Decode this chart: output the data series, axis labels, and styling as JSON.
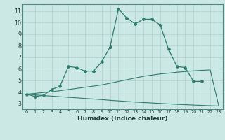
{
  "xlabel": "Humidex (Indice chaleur)",
  "x_values": [
    0,
    1,
    2,
    3,
    4,
    5,
    6,
    7,
    8,
    9,
    10,
    11,
    12,
    13,
    14,
    15,
    16,
    17,
    18,
    19,
    20,
    21,
    22,
    23
  ],
  "main_line": [
    3.8,
    3.6,
    3.7,
    4.2,
    4.5,
    6.2,
    6.1,
    5.8,
    5.8,
    6.6,
    7.9,
    11.2,
    10.4,
    9.9,
    10.3,
    10.3,
    9.8,
    7.7,
    6.2,
    6.1,
    4.9,
    4.9,
    null,
    null
  ],
  "upper_line": [
    3.8,
    3.87,
    3.94,
    4.01,
    4.1,
    4.2,
    4.3,
    4.4,
    4.5,
    4.6,
    4.75,
    4.9,
    5.05,
    5.2,
    5.35,
    5.45,
    5.55,
    5.62,
    5.7,
    5.76,
    5.82,
    5.87,
    5.9,
    2.85
  ],
  "lower_line": [
    3.8,
    3.74,
    3.68,
    3.63,
    3.58,
    3.53,
    3.48,
    3.43,
    3.38,
    3.33,
    3.27,
    3.22,
    3.17,
    3.12,
    3.08,
    3.04,
    3.0,
    2.96,
    2.92,
    2.89,
    2.86,
    2.83,
    2.8,
    2.78
  ],
  "line_color": "#2e7d6e",
  "bg_color": "#cce8e4",
  "grid_color": "#aed0cb",
  "ylim": [
    2.5,
    11.6
  ],
  "xlim": [
    -0.5,
    23.5
  ],
  "yticks": [
    3,
    4,
    5,
    6,
    7,
    8,
    9,
    10,
    11
  ],
  "xticks": [
    0,
    1,
    2,
    3,
    4,
    5,
    6,
    7,
    8,
    9,
    10,
    11,
    12,
    13,
    14,
    15,
    16,
    17,
    18,
    19,
    20,
    21,
    22,
    23
  ]
}
